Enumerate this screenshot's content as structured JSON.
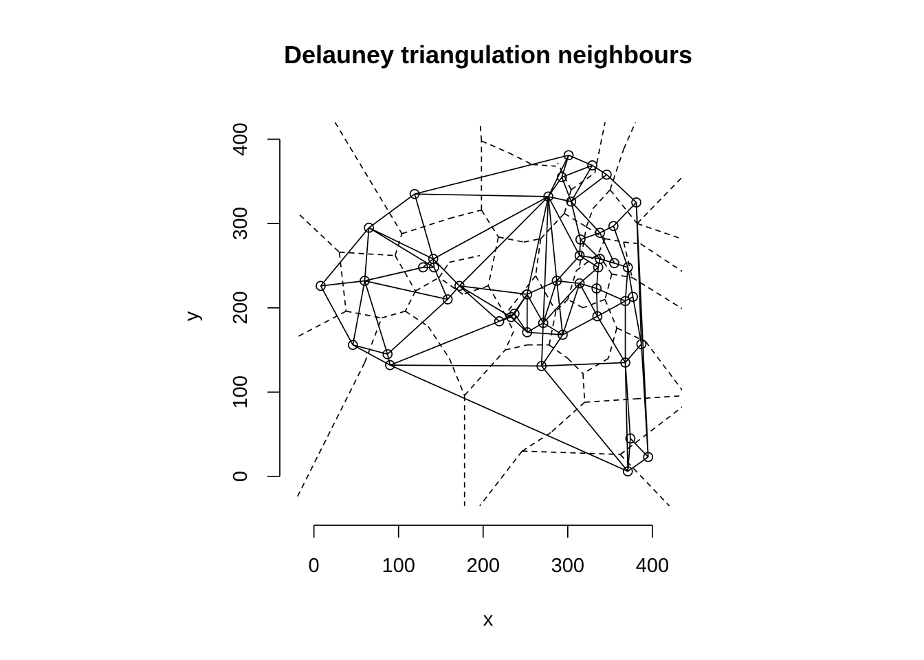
{
  "chart_data": {
    "type": "scatter",
    "title": "Delauney triangulation neighbours",
    "xlabel": "x",
    "ylabel": "y",
    "xlim": [
      -20,
      435
    ],
    "ylim": [
      -40,
      420
    ],
    "xticks": [
      0,
      100,
      200,
      300,
      400
    ],
    "yticks": [
      0,
      100,
      200,
      300,
      400
    ],
    "x_tick_labels": [
      "0",
      "100",
      "200",
      "300",
      "400"
    ],
    "y_tick_labels": [
      "0",
      "100",
      "200",
      "300",
      "400"
    ],
    "marker": "open-circle",
    "edge_style": "solid",
    "voronoi_style": "dashed",
    "points": [
      [
        8,
        226
      ],
      [
        46,
        156
      ],
      [
        60,
        232
      ],
      [
        65,
        295
      ],
      [
        87,
        145
      ],
      [
        90,
        132
      ],
      [
        119,
        335
      ],
      [
        129,
        248
      ],
      [
        141,
        258
      ],
      [
        142,
        248
      ],
      [
        158,
        210
      ],
      [
        172,
        226
      ],
      [
        219,
        184
      ],
      [
        233,
        189
      ],
      [
        237,
        193
      ],
      [
        252,
        216
      ],
      [
        252,
        171
      ],
      [
        269,
        131
      ],
      [
        271,
        182
      ],
      [
        277,
        332
      ],
      [
        287,
        232
      ],
      [
        293,
        355
      ],
      [
        294,
        168
      ],
      [
        301,
        381
      ],
      [
        304,
        326
      ],
      [
        314,
        262
      ],
      [
        314,
        229
      ],
      [
        315,
        281
      ],
      [
        329,
        369
      ],
      [
        334,
        223
      ],
      [
        335,
        190
      ],
      [
        336,
        248
      ],
      [
        338,
        289
      ],
      [
        338,
        258
      ],
      [
        346,
        358
      ],
      [
        354,
        297
      ],
      [
        355,
        253
      ],
      [
        368,
        208
      ],
      [
        368,
        135
      ],
      [
        371,
        248
      ],
      [
        374,
        45
      ],
      [
        371,
        6
      ],
      [
        377,
        213
      ],
      [
        381,
        325
      ],
      [
        387,
        157
      ],
      [
        395,
        23
      ]
    ],
    "edges": [
      [
        0,
        1
      ],
      [
        0,
        2
      ],
      [
        0,
        3
      ],
      [
        1,
        2
      ],
      [
        1,
        4
      ],
      [
        1,
        5
      ],
      [
        2,
        3
      ],
      [
        2,
        4
      ],
      [
        2,
        7
      ],
      [
        2,
        10
      ],
      [
        3,
        6
      ],
      [
        3,
        8
      ],
      [
        3,
        9
      ],
      [
        4,
        5
      ],
      [
        4,
        10
      ],
      [
        5,
        12
      ],
      [
        5,
        17
      ],
      [
        5,
        41
      ],
      [
        6,
        8
      ],
      [
        6,
        19
      ],
      [
        6,
        23
      ],
      [
        7,
        8
      ],
      [
        7,
        9
      ],
      [
        8,
        9
      ],
      [
        8,
        11
      ],
      [
        8,
        19
      ],
      [
        9,
        10
      ],
      [
        10,
        11
      ],
      [
        11,
        12
      ],
      [
        11,
        13
      ],
      [
        11,
        15
      ],
      [
        11,
        19
      ],
      [
        12,
        13
      ],
      [
        12,
        14
      ],
      [
        13,
        14
      ],
      [
        13,
        15
      ],
      [
        13,
        16
      ],
      [
        14,
        15
      ],
      [
        14,
        16
      ],
      [
        15,
        16
      ],
      [
        15,
        18
      ],
      [
        15,
        19
      ],
      [
        15,
        20
      ],
      [
        16,
        18
      ],
      [
        16,
        22
      ],
      [
        17,
        18
      ],
      [
        17,
        22
      ],
      [
        17,
        38
      ],
      [
        17,
        41
      ],
      [
        18,
        19
      ],
      [
        18,
        20
      ],
      [
        18,
        22
      ],
      [
        18,
        26
      ],
      [
        19,
        20
      ],
      [
        19,
        21
      ],
      [
        19,
        23
      ],
      [
        19,
        24
      ],
      [
        19,
        25
      ],
      [
        20,
        22
      ],
      [
        20,
        25
      ],
      [
        20,
        26
      ],
      [
        21,
        23
      ],
      [
        21,
        24
      ],
      [
        21,
        28
      ],
      [
        22,
        26
      ],
      [
        22,
        30
      ],
      [
        23,
        28
      ],
      [
        24,
        27
      ],
      [
        24,
        28
      ],
      [
        24,
        32
      ],
      [
        24,
        34
      ],
      [
        25,
        27
      ],
      [
        25,
        31
      ],
      [
        25,
        33
      ],
      [
        26,
        29
      ],
      [
        26,
        31
      ],
      [
        26,
        30
      ],
      [
        27,
        32
      ],
      [
        28,
        34
      ],
      [
        29,
        30
      ],
      [
        29,
        31
      ],
      [
        29,
        37
      ],
      [
        30,
        37
      ],
      [
        30,
        38
      ],
      [
        31,
        33
      ],
      [
        32,
        35
      ],
      [
        32,
        36
      ],
      [
        33,
        36
      ],
      [
        34,
        43
      ],
      [
        35,
        43
      ],
      [
        35,
        39
      ],
      [
        36,
        39
      ],
      [
        37,
        39
      ],
      [
        37,
        42
      ],
      [
        37,
        38
      ],
      [
        38,
        40
      ],
      [
        38,
        44
      ],
      [
        39,
        42
      ],
      [
        40,
        41
      ],
      [
        40,
        45
      ],
      [
        41,
        45
      ],
      [
        42,
        44
      ],
      [
        43,
        44
      ],
      [
        43,
        45
      ],
      [
        44,
        45
      ],
      [
        36,
        33
      ],
      [
        27,
        33
      ],
      [
        38,
        41
      ]
    ],
    "voronoi_edges": [
      [
        [
          25,
          420
        ],
        [
          104,
          288
        ]
      ],
      [
        [
          -25,
          318
        ],
        [
          30,
          266
        ]
      ],
      [
        [
          30,
          266
        ],
        [
          96,
          262
        ]
      ],
      [
        [
          30,
          266
        ],
        [
          38,
          196
        ]
      ],
      [
        [
          38,
          196
        ],
        [
          -30,
          160
        ]
      ],
      [
        [
          38,
          196
        ],
        [
          80,
          188
        ]
      ],
      [
        [
          80,
          188
        ],
        [
          108,
          196
        ]
      ],
      [
        [
          96,
          262
        ],
        [
          104,
          288
        ]
      ],
      [
        [
          104,
          288
        ],
        [
          160,
          306
        ]
      ],
      [
        [
          160,
          306
        ],
        [
          198,
          316
        ]
      ],
      [
        [
          198,
          316
        ],
        [
          198,
          398
        ]
      ],
      [
        [
          198,
          398
        ],
        [
          196,
          425
        ]
      ],
      [
        [
          198,
          398
        ],
        [
          230,
          384
        ]
      ],
      [
        [
          230,
          384
        ],
        [
          258,
          370
        ]
      ],
      [
        [
          258,
          370
        ],
        [
          286,
          368
        ]
      ],
      [
        [
          96,
          262
        ],
        [
          120,
          220
        ]
      ],
      [
        [
          120,
          220
        ],
        [
          108,
          196
        ]
      ],
      [
        [
          108,
          196
        ],
        [
          135,
          178
        ]
      ],
      [
        [
          135,
          178
        ],
        [
          160,
          140
        ]
      ],
      [
        [
          160,
          140
        ],
        [
          178,
          96
        ]
      ],
      [
        [
          178,
          96
        ],
        [
          178,
          -35
        ]
      ],
      [
        [
          178,
          96
        ],
        [
          226,
          150
        ]
      ],
      [
        [
          60,
          135
        ],
        [
          80,
          188
        ]
      ],
      [
        [
          60,
          135
        ],
        [
          -25,
          -35
        ]
      ],
      [
        [
          120,
          220
        ],
        [
          148,
          236
        ]
      ],
      [
        [
          148,
          236
        ],
        [
          160,
          254
        ]
      ],
      [
        [
          160,
          254
        ],
        [
          196,
          262
        ]
      ],
      [
        [
          198,
          316
        ],
        [
          218,
          284
        ]
      ],
      [
        [
          218,
          284
        ],
        [
          248,
          278
        ]
      ],
      [
        [
          248,
          278
        ],
        [
          268,
          282
        ]
      ],
      [
        [
          218,
          284
        ],
        [
          206,
          226
        ]
      ],
      [
        [
          206,
          226
        ],
        [
          176,
          216
        ]
      ],
      [
        [
          176,
          216
        ],
        [
          148,
          236
        ]
      ],
      [
        [
          206,
          226
        ],
        [
          226,
          192
        ]
      ],
      [
        [
          226,
          192
        ],
        [
          236,
          172
        ]
      ],
      [
        [
          236,
          172
        ],
        [
          226,
          150
        ]
      ],
      [
        [
          226,
          150
        ],
        [
          252,
          156
        ]
      ],
      [
        [
          252,
          156
        ],
        [
          278,
          156
        ]
      ],
      [
        [
          278,
          156
        ],
        [
          300,
          140
        ]
      ],
      [
        [
          300,
          140
        ],
        [
          318,
          122
        ]
      ],
      [
        [
          318,
          122
        ],
        [
          320,
          88
        ]
      ],
      [
        [
          320,
          88
        ],
        [
          380,
          92
        ]
      ],
      [
        [
          380,
          92
        ],
        [
          440,
          96
        ]
      ],
      [
        [
          320,
          88
        ],
        [
          280,
          52
        ]
      ],
      [
        [
          280,
          52
        ],
        [
          246,
          30
        ]
      ],
      [
        [
          246,
          30
        ],
        [
          196,
          -35
        ]
      ],
      [
        [
          246,
          30
        ],
        [
          362,
          26
        ]
      ],
      [
        [
          362,
          26
        ],
        [
          420,
          -35
        ]
      ],
      [
        [
          362,
          26
        ],
        [
          440,
          86
        ]
      ],
      [
        [
          268,
          282
        ],
        [
          296,
          312
        ]
      ],
      [
        [
          296,
          312
        ],
        [
          304,
          340
        ]
      ],
      [
        [
          304,
          340
        ],
        [
          288,
          372
        ]
      ],
      [
        [
          296,
          312
        ],
        [
          322,
          296
        ]
      ],
      [
        [
          322,
          296
        ],
        [
          330,
          318
        ]
      ],
      [
        [
          330,
          318
        ],
        [
          350,
          340
        ]
      ],
      [
        [
          350,
          340
        ],
        [
          366,
          388
        ]
      ],
      [
        [
          366,
          388
        ],
        [
          380,
          420
        ]
      ],
      [
        [
          350,
          340
        ],
        [
          382,
          300
        ]
      ],
      [
        [
          382,
          300
        ],
        [
          440,
          280
        ]
      ],
      [
        [
          382,
          300
        ],
        [
          440,
          360
        ]
      ],
      [
        [
          304,
          340
        ],
        [
          332,
          360
        ]
      ],
      [
        [
          332,
          360
        ],
        [
          344,
          420
        ]
      ],
      [
        [
          322,
          296
        ],
        [
          344,
          282
        ]
      ],
      [
        [
          344,
          282
        ],
        [
          366,
          278
        ]
      ],
      [
        [
          366,
          278
        ],
        [
          386,
          276
        ]
      ],
      [
        [
          386,
          276
        ],
        [
          440,
          240
        ]
      ],
      [
        [
          344,
          282
        ],
        [
          336,
          264
        ]
      ],
      [
        [
          336,
          264
        ],
        [
          352,
          240
        ]
      ],
      [
        [
          352,
          240
        ],
        [
          376,
          236
        ]
      ],
      [
        [
          376,
          236
        ],
        [
          440,
          196
        ]
      ],
      [
        [
          352,
          240
        ],
        [
          344,
          210
        ]
      ],
      [
        [
          344,
          210
        ],
        [
          318,
          200
        ]
      ],
      [
        [
          318,
          200
        ],
        [
          300,
          210
        ]
      ],
      [
        [
          300,
          210
        ],
        [
          286,
          196
        ]
      ],
      [
        [
          286,
          196
        ],
        [
          278,
          156
        ]
      ],
      [
        [
          344,
          210
        ],
        [
          358,
          176
        ]
      ],
      [
        [
          358,
          176
        ],
        [
          392,
          160
        ]
      ],
      [
        [
          358,
          176
        ],
        [
          348,
          140
        ]
      ],
      [
        [
          348,
          140
        ],
        [
          318,
          122
        ]
      ],
      [
        [
          392,
          160
        ],
        [
          440,
          96
        ]
      ],
      [
        [
          268,
          282
        ],
        [
          262,
          238
        ]
      ],
      [
        [
          262,
          238
        ],
        [
          286,
          196
        ]
      ],
      [
        [
          262,
          238
        ],
        [
          248,
          220
        ]
      ],
      [
        [
          248,
          220
        ],
        [
          226,
          192
        ]
      ],
      [
        [
          300,
          210
        ],
        [
          310,
          244
        ]
      ],
      [
        [
          310,
          244
        ],
        [
          336,
          264
        ]
      ],
      [
        [
          314,
          250
        ],
        [
          322,
          296
        ]
      ],
      [
        [
          366,
          278
        ],
        [
          376,
          236
        ]
      ]
    ]
  }
}
